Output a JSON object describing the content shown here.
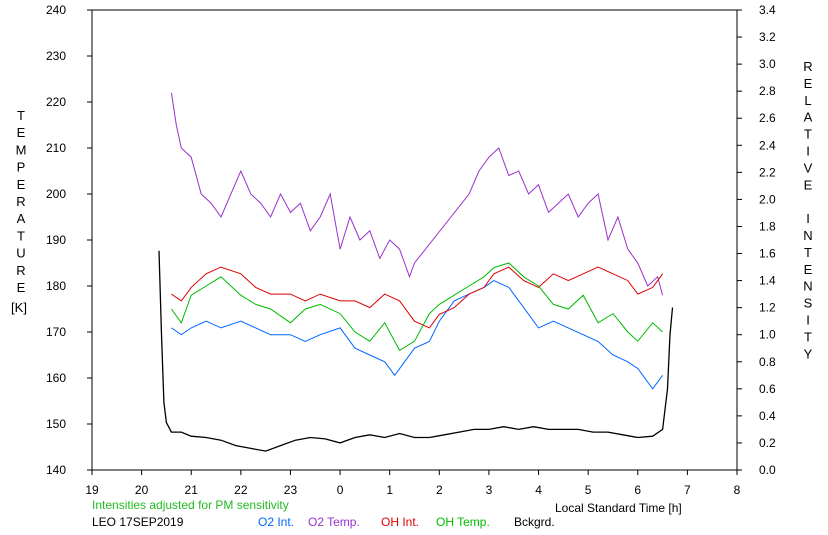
{
  "chart_data": {
    "type": "line",
    "left_axis": {
      "label": "TEMPERATURE",
      "unit": "[K]",
      "min": 140,
      "max": 240,
      "step": 10
    },
    "right_axis": {
      "label": "RELATIVE INTENSITY",
      "min": 0.0,
      "max": 3.4,
      "step": 0.2
    },
    "x_axis": {
      "label": "Local Standard Time [h]",
      "range": [
        19,
        32
      ],
      "ticks": [
        {
          "v": 19,
          "t": "19"
        },
        {
          "v": 20,
          "t": "20"
        },
        {
          "v": 21,
          "t": "21"
        },
        {
          "v": 22,
          "t": "22"
        },
        {
          "v": 23,
          "t": "23"
        },
        {
          "v": 24,
          "t": "0"
        },
        {
          "v": 25,
          "t": "1"
        },
        {
          "v": 26,
          "t": "2"
        },
        {
          "v": 27,
          "t": "3"
        },
        {
          "v": 28,
          "t": "4"
        },
        {
          "v": 29,
          "t": "5"
        },
        {
          "v": 30,
          "t": "6"
        },
        {
          "v": 31,
          "t": "7"
        },
        {
          "v": 32,
          "t": "8"
        }
      ]
    },
    "note": "Intensities adjusted for PM sensitivity",
    "station": "LEO 17SEP2019",
    "colors": {
      "o2_int": "#0066ff",
      "o2_temp": "#9933cc",
      "oh_int": "#dd0000",
      "oh_temp": "#00bb00",
      "bckgrd": "#000000"
    },
    "series": [
      {
        "name": "O2 Int.",
        "key": "o2_int",
        "axis": "right",
        "x": [
          20.6,
          20.8,
          21.0,
          21.3,
          21.6,
          22.0,
          22.3,
          22.6,
          23.0,
          23.3,
          23.6,
          24.0,
          24.3,
          24.6,
          24.9,
          25.1,
          25.3,
          25.5,
          25.8,
          26.0,
          26.3,
          26.6,
          26.9,
          27.1,
          27.4,
          27.7,
          28.0,
          28.3,
          28.6,
          28.9,
          29.2,
          29.5,
          29.8,
          30.0,
          30.3,
          30.5
        ],
        "y": [
          1.05,
          1.0,
          1.05,
          1.1,
          1.05,
          1.1,
          1.05,
          1.0,
          1.0,
          0.95,
          1.0,
          1.05,
          0.9,
          0.85,
          0.8,
          0.7,
          0.8,
          0.9,
          0.95,
          1.1,
          1.25,
          1.3,
          1.35,
          1.4,
          1.35,
          1.2,
          1.05,
          1.1,
          1.05,
          1.0,
          0.95,
          0.85,
          0.8,
          0.75,
          0.6,
          0.7
        ]
      },
      {
        "name": "O2 Temp.",
        "key": "o2_temp",
        "axis": "left",
        "x": [
          20.6,
          20.7,
          20.8,
          21.0,
          21.2,
          21.4,
          21.6,
          21.8,
          22.0,
          22.2,
          22.4,
          22.6,
          22.8,
          23.0,
          23.2,
          23.4,
          23.6,
          23.8,
          24.0,
          24.2,
          24.4,
          24.6,
          24.8,
          25.0,
          25.2,
          25.4,
          25.5,
          26.6,
          26.8,
          27.0,
          27.2,
          27.4,
          27.6,
          27.8,
          28.0,
          28.2,
          28.4,
          28.6,
          28.8,
          29.0,
          29.2,
          29.4,
          29.6,
          29.8,
          30.0,
          30.2,
          30.4,
          30.5
        ],
        "y": [
          222,
          215,
          210,
          208,
          200,
          198,
          195,
          200,
          205,
          200,
          198,
          195,
          200,
          196,
          198,
          192,
          195,
          200,
          188,
          195,
          190,
          192,
          186,
          190,
          188,
          182,
          185,
          200,
          205,
          208,
          210,
          204,
          205,
          200,
          202,
          196,
          198,
          200,
          195,
          198,
          200,
          190,
          195,
          188,
          185,
          180,
          182,
          178
        ]
      },
      {
        "name": "OH Int.",
        "key": "oh_int",
        "axis": "right",
        "x": [
          20.6,
          20.8,
          21.0,
          21.3,
          21.6,
          22.0,
          22.3,
          22.6,
          23.0,
          23.3,
          23.6,
          24.0,
          24.3,
          24.6,
          24.9,
          25.2,
          25.5,
          25.8,
          26.0,
          26.3,
          26.6,
          26.9,
          27.1,
          27.4,
          27.7,
          28.0,
          28.3,
          28.6,
          28.9,
          29.2,
          29.5,
          29.8,
          30.0,
          30.3,
          30.5
        ],
        "y": [
          1.3,
          1.25,
          1.35,
          1.45,
          1.5,
          1.45,
          1.35,
          1.3,
          1.3,
          1.25,
          1.3,
          1.25,
          1.25,
          1.2,
          1.3,
          1.25,
          1.1,
          1.05,
          1.15,
          1.2,
          1.3,
          1.35,
          1.45,
          1.5,
          1.4,
          1.35,
          1.45,
          1.4,
          1.45,
          1.5,
          1.45,
          1.4,
          1.3,
          1.35,
          1.45
        ]
      },
      {
        "name": "OH Temp.",
        "key": "oh_temp",
        "axis": "left",
        "x": [
          20.6,
          20.8,
          21.0,
          21.3,
          21.6,
          22.0,
          22.3,
          22.6,
          23.0,
          23.3,
          23.6,
          24.0,
          24.3,
          24.6,
          24.9,
          25.2,
          25.5,
          25.8,
          26.0,
          26.3,
          26.6,
          26.9,
          27.1,
          27.4,
          27.7,
          28.0,
          28.3,
          28.6,
          28.9,
          29.2,
          29.5,
          29.8,
          30.0,
          30.3,
          30.5
        ],
        "y": [
          175,
          172,
          178,
          180,
          182,
          178,
          176,
          175,
          172,
          175,
          176,
          174,
          170,
          168,
          172,
          166,
          168,
          174,
          176,
          178,
          180,
          182,
          184,
          185,
          182,
          180,
          176,
          175,
          178,
          172,
          174,
          170,
          168,
          172,
          170
        ]
      },
      {
        "name": "Bckgrd.",
        "key": "bckgrd",
        "axis": "right",
        "x": [
          20.35,
          20.4,
          20.45,
          20.5,
          20.6,
          20.8,
          21.0,
          21.3,
          21.6,
          21.9,
          22.2,
          22.5,
          22.8,
          23.1,
          23.4,
          23.7,
          24.0,
          24.3,
          24.6,
          24.9,
          25.2,
          25.5,
          25.8,
          26.1,
          26.4,
          26.7,
          27.0,
          27.3,
          27.6,
          27.9,
          28.2,
          28.5,
          28.8,
          29.1,
          29.4,
          29.7,
          30.0,
          30.3,
          30.5,
          30.6,
          30.65,
          30.7
        ],
        "y": [
          1.62,
          1.0,
          0.5,
          0.35,
          0.28,
          0.28,
          0.25,
          0.24,
          0.22,
          0.18,
          0.16,
          0.14,
          0.18,
          0.22,
          0.24,
          0.23,
          0.2,
          0.24,
          0.26,
          0.24,
          0.27,
          0.24,
          0.24,
          0.26,
          0.28,
          0.3,
          0.3,
          0.32,
          0.3,
          0.32,
          0.3,
          0.3,
          0.3,
          0.28,
          0.28,
          0.26,
          0.24,
          0.25,
          0.3,
          0.6,
          1.0,
          1.2
        ]
      }
    ]
  }
}
